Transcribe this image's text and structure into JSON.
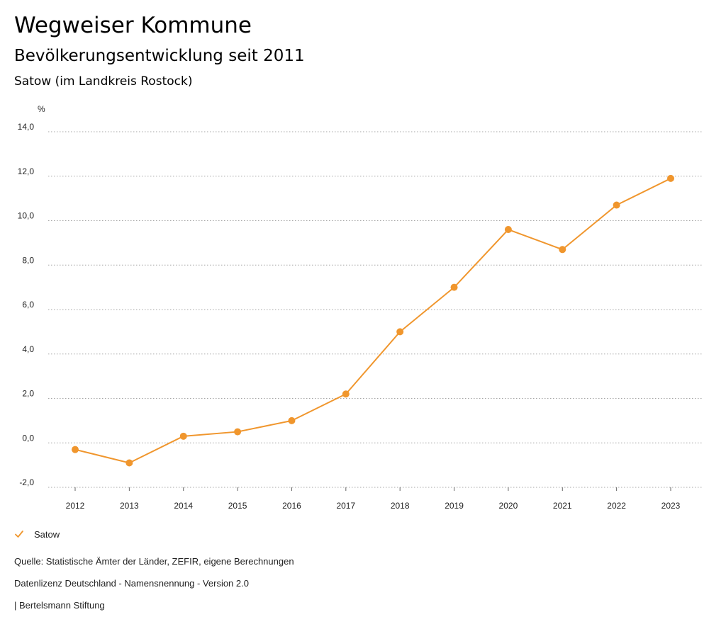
{
  "header": {
    "title": "Wegweiser Kommune",
    "subtitle": "Bevölkerungsentwicklung seit 2011",
    "region": "Satow (im Landkreis Rostock)"
  },
  "chart_data": {
    "type": "line",
    "title": "Bevölkerungsentwicklung seit 2011",
    "ylabel": "%",
    "xlabel": "",
    "categories": [
      "2012",
      "2013",
      "2014",
      "2015",
      "2016",
      "2017",
      "2018",
      "2019",
      "2020",
      "2021",
      "2022",
      "2023"
    ],
    "series": [
      {
        "name": "Satow",
        "color": "#f0962d",
        "values": [
          -0.3,
          -0.9,
          0.3,
          0.5,
          1.0,
          2.2,
          5.0,
          7.0,
          9.6,
          8.7,
          10.7,
          11.9
        ]
      }
    ],
    "ylim": [
      -2,
      14
    ],
    "yticks": [
      -2,
      0,
      2,
      4,
      6,
      8,
      10,
      12,
      14
    ],
    "ytick_labels": [
      "-2,0",
      "0,0",
      "2,0",
      "4,0",
      "6,0",
      "8,0",
      "10,0",
      "12,0",
      "14,0"
    ],
    "grid": true,
    "legend_position": "bottom-left"
  },
  "legend": {
    "items": [
      {
        "label": "Satow",
        "icon": "check-icon",
        "color": "#f0962d"
      }
    ]
  },
  "footer": {
    "source": "Quelle: Statistische Ämter der Länder, ZEFIR, eigene Berechnungen",
    "license": "Datenlizenz Deutschland - Namensnennung - Version 2.0",
    "credit": "| Bertelsmann Stiftung"
  }
}
